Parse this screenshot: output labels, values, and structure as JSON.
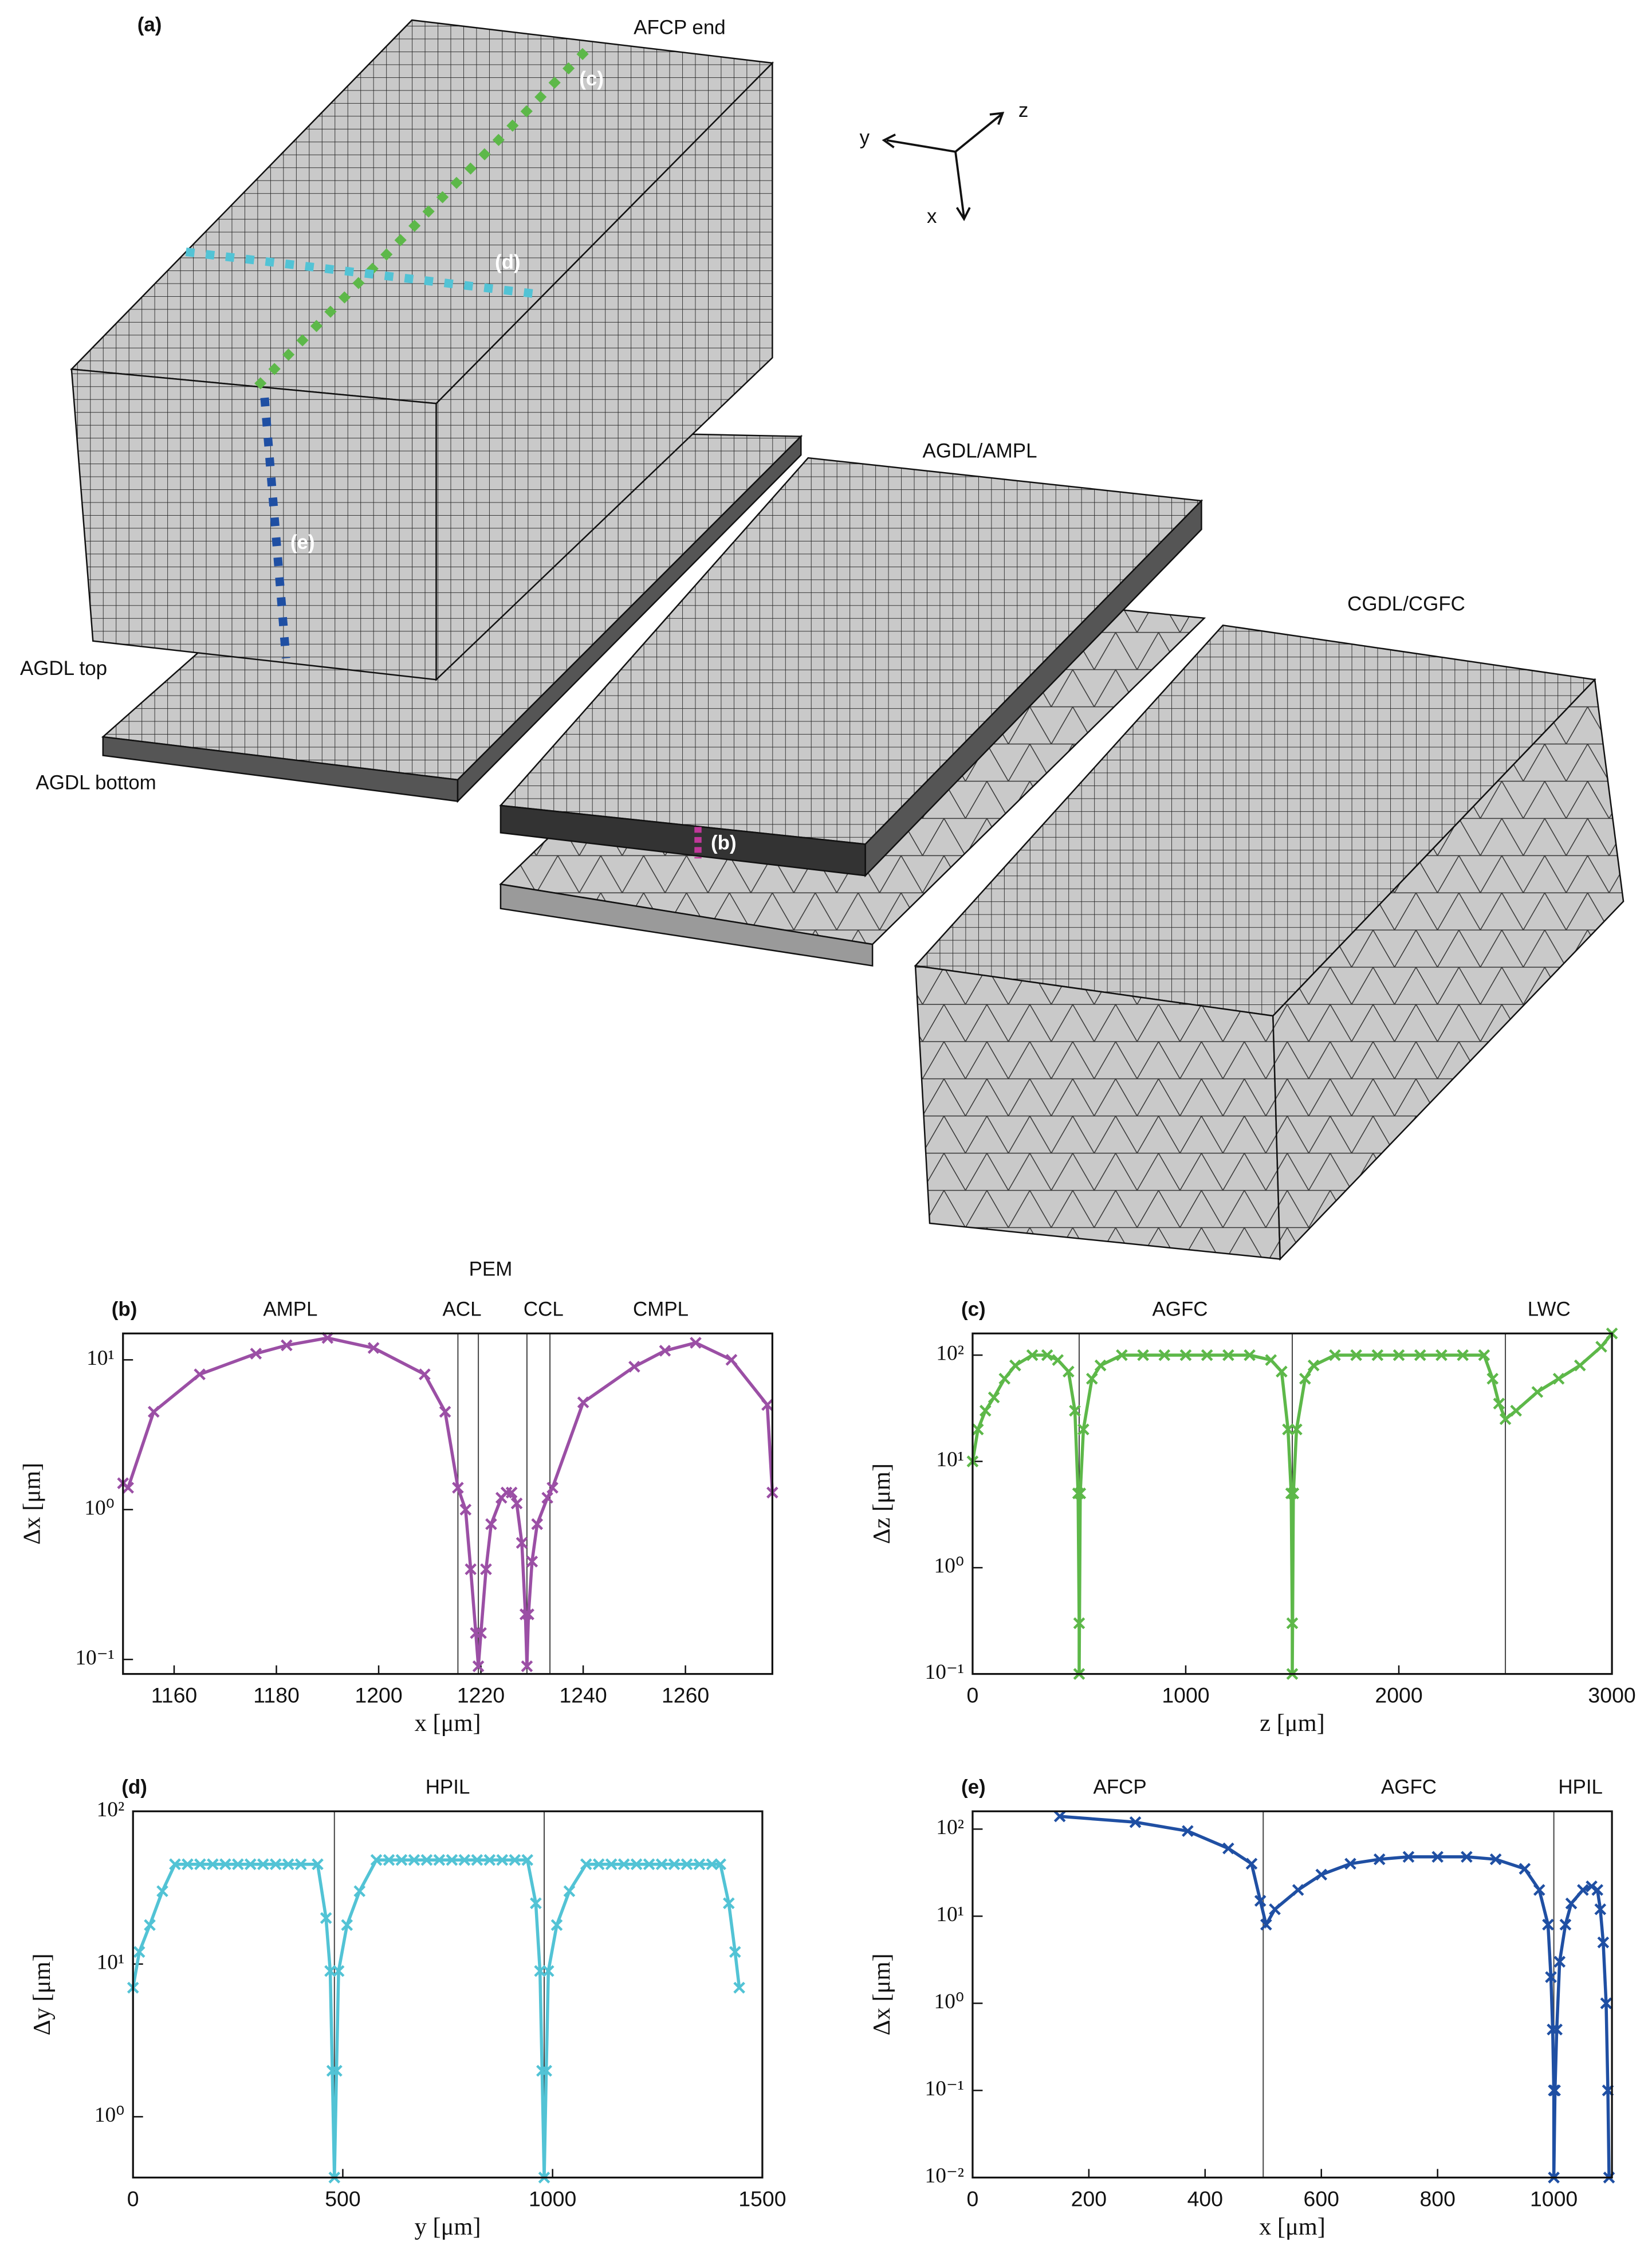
{
  "panel_a": {
    "label": "(a)",
    "annotations": [
      "AFCP end",
      "AGDL/AMPL",
      "CGDL/CGFC",
      "AGDL top",
      "AGDL bottom"
    ],
    "axes": [
      "y",
      "z",
      "x"
    ],
    "path_labels": [
      "(b)",
      "(c)",
      "(d)",
      "(e)"
    ]
  },
  "chart_data": [
    {
      "type": "line",
      "title": "(b)",
      "annotations": [
        "PEM",
        "AMPL",
        "ACL",
        "CCL",
        "CMPL"
      ],
      "x_label": "x [μm]",
      "y_label": "Δx [μm]",
      "log_y": true,
      "x": [
        1150,
        1151,
        1156,
        1165,
        1176,
        1182,
        1190,
        1199,
        1209,
        1213,
        1215.5,
        1217,
        1218,
        1219,
        1219.5,
        1220,
        1221,
        1222,
        1224,
        1225,
        1226,
        1227,
        1228,
        1228.7,
        1229,
        1229.3,
        1230,
        1231,
        1233,
        1234,
        1240,
        1250,
        1256,
        1262,
        1269,
        1276,
        1277
      ],
      "series": [
        {
          "name": "b",
          "color": "#9b4fa5",
          "values": [
            1.5,
            1.4,
            4.5,
            8,
            11,
            12.5,
            14,
            12,
            8,
            4.5,
            1.4,
            1.0,
            0.4,
            0.15,
            0.09,
            0.15,
            0.4,
            0.8,
            1.2,
            1.3,
            1.3,
            1.1,
            0.6,
            0.2,
            0.09,
            0.2,
            0.45,
            0.8,
            1.2,
            1.4,
            5.2,
            9,
            11.5,
            13,
            10,
            5,
            1.3
          ]
        }
      ],
      "vlines": [
        1215.5,
        1219.5,
        1229,
        1233.5
      ],
      "xlim": [
        1150,
        1277
      ],
      "xticks": [
        1160,
        1180,
        1200,
        1220,
        1240,
        1260
      ],
      "ylim": [
        0.08,
        15
      ],
      "yticks": [
        {
          "value": 0.1,
          "label": "10⁻¹"
        },
        {
          "value": 1,
          "label": "10⁰"
        },
        {
          "value": 10,
          "label": "10¹"
        }
      ]
    },
    {
      "type": "line",
      "title": "(c)",
      "annotations": [
        "AGFC",
        "LWC"
      ],
      "x_label": "z [μm]",
      "y_label": "Δz [μm]",
      "log_y": true,
      "x": [
        0,
        25,
        60,
        100,
        150,
        200,
        280,
        350,
        400,
        450,
        480,
        495,
        500,
        500,
        505,
        520,
        560,
        600,
        700,
        800,
        900,
        1000,
        1100,
        1200,
        1300,
        1400,
        1450,
        1480,
        1495,
        1500,
        1500,
        1505,
        1520,
        1560,
        1600,
        1700,
        1800,
        1900,
        2000,
        2100,
        2200,
        2300,
        2400,
        2440,
        2470,
        2500,
        2550,
        2650,
        2750,
        2850,
        2950,
        3000
      ],
      "series": [
        {
          "name": "c",
          "color": "#5db849",
          "values": [
            10,
            20,
            30,
            40,
            60,
            80,
            100,
            100,
            90,
            70,
            30,
            5,
            0.3,
            0.1,
            5,
            20,
            60,
            80,
            100,
            100,
            100,
            100,
            100,
            100,
            100,
            90,
            70,
            20,
            5,
            0.3,
            0.1,
            5,
            20,
            60,
            80,
            100,
            100,
            100,
            100,
            100,
            100,
            100,
            100,
            60,
            35,
            25,
            30,
            45,
            60,
            80,
            120,
            160
          ]
        }
      ],
      "vlines": [
        500,
        1500,
        2500
      ],
      "xlim": [
        0,
        3000
      ],
      "xticks": [
        0,
        1000,
        2000,
        3000
      ],
      "ylim": [
        0.1,
        160
      ],
      "yticks": [
        {
          "value": 0.1,
          "label": "10⁻¹"
        },
        {
          "value": 1,
          "label": "10⁰"
        },
        {
          "value": 10,
          "label": "10¹"
        },
        {
          "value": 100,
          "label": "10²"
        }
      ]
    },
    {
      "type": "line",
      "title": "(d)",
      "annotations": [
        "HPIL"
      ],
      "x_label": "y [μm]",
      "y_label": "Δy [μm]",
      "log_y": true,
      "x": [
        0,
        15,
        40,
        70,
        100,
        130,
        160,
        190,
        220,
        250,
        280,
        310,
        340,
        370,
        400,
        440,
        460,
        470,
        475,
        480,
        485,
        490,
        510,
        540,
        580,
        610,
        640,
        670,
        700,
        730,
        760,
        790,
        820,
        850,
        880,
        910,
        940,
        960,
        970,
        975,
        980,
        985,
        990,
        1010,
        1040,
        1080,
        1110,
        1140,
        1170,
        1200,
        1230,
        1260,
        1290,
        1320,
        1350,
        1380,
        1400,
        1420,
        1435,
        1445
      ],
      "series": [
        {
          "name": "d",
          "color": "#52c3d5",
          "values": [
            7,
            12,
            18,
            30,
            45,
            45,
            45,
            45,
            45,
            45,
            45,
            45,
            45,
            45,
            45,
            45,
            20,
            9,
            2,
            0.4,
            2,
            9,
            18,
            30,
            48,
            48,
            48,
            48,
            48,
            48,
            48,
            48,
            48,
            48,
            48,
            48,
            48,
            25,
            9,
            2,
            0.4,
            2,
            9,
            18,
            30,
            45,
            45,
            45,
            45,
            45,
            45,
            45,
            45,
            45,
            45,
            45,
            45,
            25,
            12,
            7
          ]
        }
      ],
      "vlines": [
        480,
        980
      ],
      "xlim": [
        0,
        1500
      ],
      "xticks": [
        0,
        500,
        1000,
        1500
      ],
      "ylim": [
        0.4,
        100
      ],
      "yticks": [
        {
          "value": 1,
          "label": "10⁰"
        },
        {
          "value": 10,
          "label": "10¹"
        },
        {
          "value": 100,
          "label": "10²"
        }
      ]
    },
    {
      "type": "line",
      "title": "(e)",
      "annotations": [
        "AFCP",
        "AGFC",
        "HPIL"
      ],
      "x_label": "x [μm]",
      "y_label": "Δx [μm]",
      "log_y": true,
      "x": [
        150,
        280,
        370,
        440,
        480,
        495,
        505,
        520,
        560,
        600,
        650,
        700,
        750,
        800,
        850,
        900,
        950,
        975,
        990,
        995,
        998,
        1000,
        1000,
        1002,
        1005,
        1010,
        1020,
        1030,
        1050,
        1065,
        1075,
        1080,
        1085,
        1090,
        1093,
        1095
      ],
      "series": [
        {
          "name": "e",
          "color": "#1f4fa3",
          "values": [
            140,
            120,
            95,
            60,
            40,
            15,
            8,
            12,
            20,
            30,
            40,
            45,
            48,
            48,
            48,
            45,
            35,
            20,
            8,
            2,
            0.5,
            0.1,
            0.01,
            0.1,
            0.5,
            3,
            8,
            14,
            20,
            22,
            20,
            12,
            5,
            1,
            0.1,
            0.01
          ]
        }
      ],
      "vlines": [
        500,
        1000
      ],
      "xlim": [
        0,
        1100
      ],
      "xticks": [
        0,
        200,
        400,
        600,
        800,
        1000
      ],
      "ylim": [
        0.01,
        160
      ],
      "yticks": [
        {
          "value": 0.01,
          "label": "10⁻²"
        },
        {
          "value": 0.1,
          "label": "10⁻¹"
        },
        {
          "value": 1,
          "label": "10⁰"
        },
        {
          "value": 10,
          "label": "10¹"
        },
        {
          "value": 100,
          "label": "10²"
        }
      ]
    }
  ]
}
